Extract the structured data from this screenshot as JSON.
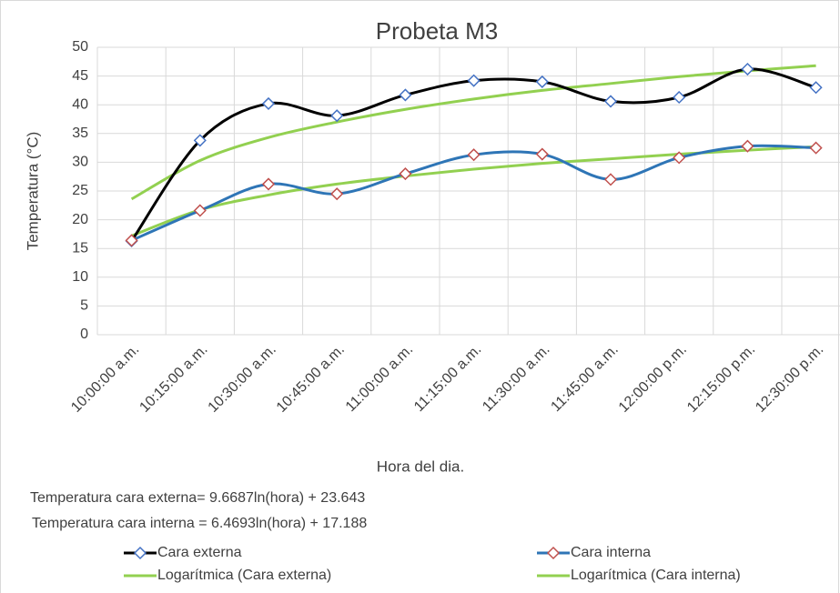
{
  "chart_data": {
    "type": "line",
    "title": "Probeta M3",
    "x_label": "Hora del dia.",
    "y_label": "Temperatura (°C)",
    "annotations": [
      "Temperatura cara externa= 9.6687ln(hora) + 23.643",
      "Temperatura cara interna = 6.4693ln(hora) + 17.188"
    ],
    "categories": [
      "10:00:00 a.m.",
      "10:15:00 a.m.",
      "10:30:00 a.m.",
      "10:45:00 a.m.",
      "11:00:00 a.m.",
      "11:15:00 a.m.",
      "11:30:00 a.m.",
      "11:45:00 a.m.",
      "12:00:00 p.m.",
      "12:15:00 p.m.",
      "12:30:00 p.m."
    ],
    "series": [
      {
        "name": "Cara externa",
        "color": "#000000",
        "marker": "diamond",
        "marker_color": "#4472c4",
        "values": [
          16.3,
          33.8,
          40.2,
          38.1,
          41.7,
          44.2,
          44.0,
          40.6,
          41.3,
          46.2,
          43.0
        ]
      },
      {
        "name": "Cara interna",
        "color": "#2e75b6",
        "marker": "diamond",
        "marker_color": "#c0504d",
        "values": [
          16.4,
          21.6,
          26.2,
          24.5,
          28.0,
          31.3,
          31.4,
          27.0,
          30.8,
          32.8,
          32.5
        ]
      },
      {
        "name": "Logarítmica (Cara externa)",
        "color": "#92d050",
        "marker": null,
        "values": [
          23.6,
          30.3,
          34.3,
          37.0,
          39.2,
          41.0,
          42.5,
          43.7,
          44.9,
          45.9,
          46.8
        ]
      },
      {
        "name": "Logarítmica (Cara interna)",
        "color": "#92d050",
        "marker": null,
        "values": [
          17.2,
          21.7,
          24.3,
          26.2,
          27.6,
          28.8,
          29.8,
          30.6,
          31.4,
          32.1,
          32.7
        ]
      }
    ],
    "ylim": [
      0,
      50
    ],
    "yticks": [
      0,
      5,
      10,
      15,
      20,
      25,
      30,
      35,
      40,
      45,
      50
    ],
    "grid": true,
    "legend": "bottom"
  }
}
